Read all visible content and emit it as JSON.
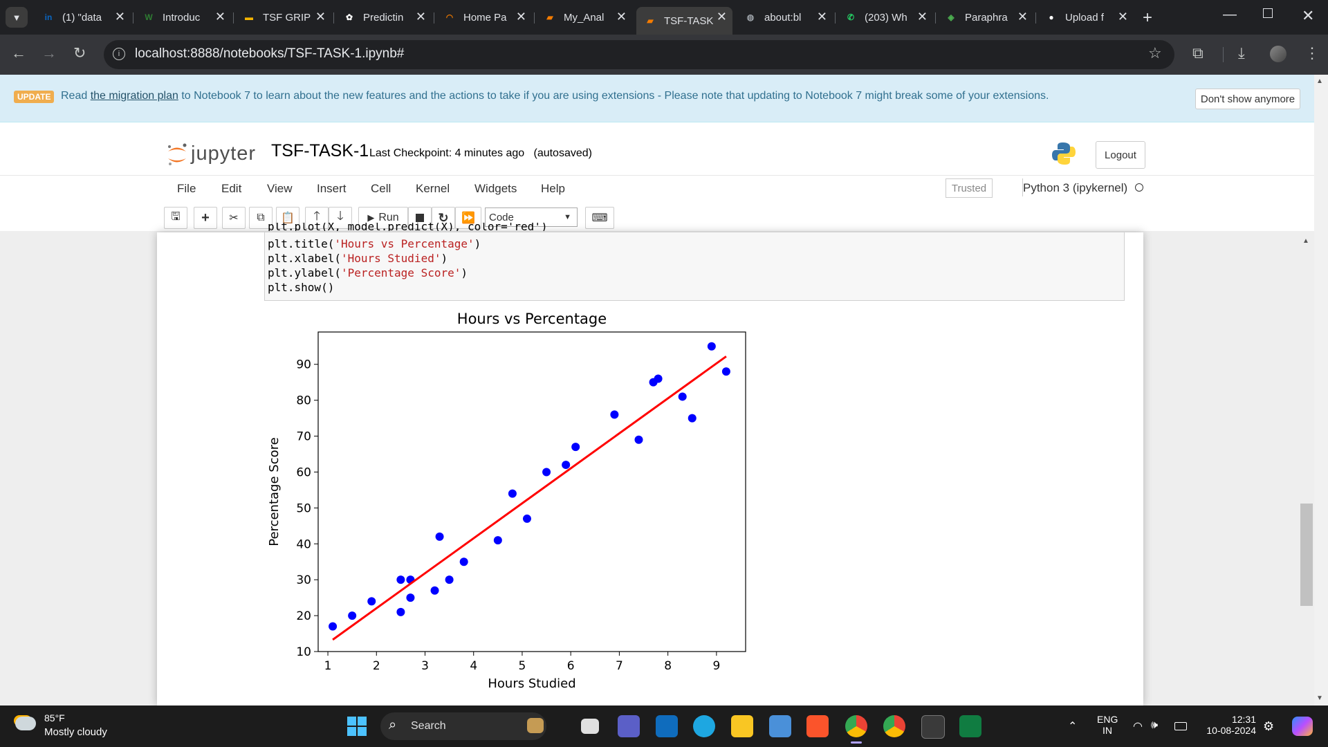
{
  "tabs": [
    {
      "label": "(1) \"data",
      "icon": "linkedin-icon",
      "color": "#0a66c2",
      "glyph": "in"
    },
    {
      "label": "Introduc",
      "icon": "w-icon",
      "color": "#2e7d32",
      "glyph": "W"
    },
    {
      "label": "TSF GRIP",
      "icon": "slides-icon",
      "color": "#f4b400",
      "glyph": "▬"
    },
    {
      "label": "Predictin",
      "icon": "openai-icon",
      "color": "#ffffff",
      "glyph": "✿"
    },
    {
      "label": "Home Pa",
      "icon": "loading-icon",
      "color": "#e37400",
      "glyph": "◠"
    },
    {
      "label": "My_Anal",
      "icon": "notebook-icon",
      "color": "#f57c00",
      "glyph": "▰"
    },
    {
      "label": "TSF-TASK",
      "icon": "notebook-icon",
      "color": "#f57c00",
      "glyph": "▰"
    },
    {
      "label": "about:bl",
      "icon": "globe-icon",
      "color": "#9aa0a6",
      "glyph": "◍"
    },
    {
      "label": "(203) Wh",
      "icon": "whatsapp-icon",
      "color": "#25d366",
      "glyph": "✆"
    },
    {
      "label": "Paraphra",
      "icon": "quillbot-icon",
      "color": "#4caf50",
      "glyph": "◈"
    },
    {
      "label": "Upload f",
      "icon": "github-icon",
      "color": "#ffffff",
      "glyph": "●"
    }
  ],
  "active_tab": 6,
  "address": {
    "url": "localhost:8888/notebooks/TSF-TASK-1.ipynb#"
  },
  "banner": {
    "badge": "UPDATE",
    "text_before": "Read ",
    "link": "the migration plan",
    "text_after": " to Notebook 7 to learn about the new features and the actions to take if you are using extensions - Please note that updating to Notebook 7 might break some of your extensions.",
    "dismiss": "Don't show anymore"
  },
  "header": {
    "logo": "jupyter",
    "title": "TSF-TASK-1",
    "checkpoint": "Last Checkpoint: 4 minutes ago",
    "autosave": "(autosaved)",
    "logout": "Logout"
  },
  "menu": [
    "File",
    "Edit",
    "View",
    "Insert",
    "Cell",
    "Kernel",
    "Widgets",
    "Help"
  ],
  "trusted": "Trusted",
  "kernel": "Python 3 (ipykernel)",
  "toolbar": {
    "run": "Run",
    "cell_type": "Code"
  },
  "code": {
    "line0": "plt.plot(X, model.predict(X), color='red')",
    "line1a": "plt.title(",
    "line1b": "'Hours vs Percentage'",
    "line1c": ")",
    "line2a": "plt.xlabel(",
    "line2b": "'Hours Studied'",
    "line2c": ")",
    "line3a": "plt.ylabel(",
    "line3b": "'Percentage Score'",
    "line3c": ")",
    "line4": "plt.show()"
  },
  "chart_data": {
    "type": "scatter",
    "title": "Hours vs Percentage",
    "xlabel": "Hours Studied",
    "ylabel": "Percentage Score",
    "xlim": [
      0.8,
      9.6
    ],
    "ylim": [
      10,
      99
    ],
    "xticks": [
      1,
      2,
      3,
      4,
      5,
      6,
      7,
      8,
      9
    ],
    "yticks": [
      10,
      20,
      30,
      40,
      50,
      60,
      70,
      80,
      90
    ],
    "points_color": "#0000ff",
    "line_color": "#ff0000",
    "x": [
      1.1,
      1.5,
      1.9,
      2.5,
      2.5,
      2.7,
      2.7,
      3.2,
      3.3,
      3.5,
      3.8,
      4.5,
      4.8,
      5.1,
      5.5,
      5.9,
      6.1,
      6.9,
      7.4,
      7.7,
      7.8,
      8.3,
      8.5,
      8.9,
      9.2
    ],
    "y": [
      17,
      20,
      24,
      21,
      30,
      25,
      30,
      27,
      42,
      30,
      35,
      41,
      54,
      47,
      60,
      62,
      67,
      76,
      69,
      85,
      86,
      81,
      75,
      95,
      88
    ],
    "fit_line": {
      "x": [
        1.1,
        9.2
      ],
      "y": [
        13.3,
        92.2
      ]
    }
  },
  "taskbar": {
    "weather_temp": "85°F",
    "weather_desc": "Mostly cloudy",
    "search": "Search",
    "lang1": "ENG",
    "lang2": "IN",
    "time": "12:31",
    "date": "10-08-2024"
  }
}
